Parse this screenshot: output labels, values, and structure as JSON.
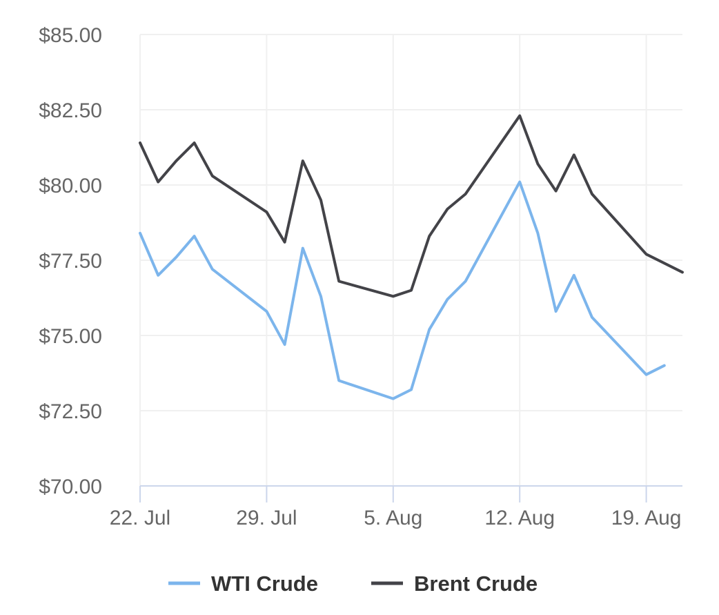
{
  "chart_data": {
    "type": "line",
    "title": "",
    "xlabel": "",
    "ylabel": "",
    "ylim": [
      70,
      85
    ],
    "xlim": [
      "2024-07-22",
      "2024-08-21"
    ],
    "y_ticks": [
      70,
      72.5,
      75,
      77.5,
      80,
      82.5,
      85
    ],
    "y_tick_labels": [
      "$70.00",
      "$72.50",
      "$75.00",
      "$77.50",
      "$80.00",
      "$82.50",
      "$85.00"
    ],
    "x_ticks": [
      "2024-07-22",
      "2024-07-29",
      "2024-08-05",
      "2024-08-12",
      "2024-08-19"
    ],
    "x_tick_labels": [
      "22. Jul",
      "29. Jul",
      "5. Aug",
      "12. Aug",
      "19. Aug"
    ],
    "grid": true,
    "legend_position": "bottom",
    "series": [
      {
        "name": "WTI Crude",
        "color": "#7cb5ec",
        "points": [
          {
            "x": "2024-07-22",
            "y": 78.4
          },
          {
            "x": "2024-07-23",
            "y": 77.0
          },
          {
            "x": "2024-07-24",
            "y": 77.6
          },
          {
            "x": "2024-07-25",
            "y": 78.3
          },
          {
            "x": "2024-07-26",
            "y": 77.2
          },
          {
            "x": "2024-07-29",
            "y": 75.8
          },
          {
            "x": "2024-07-30",
            "y": 74.7
          },
          {
            "x": "2024-07-31",
            "y": 77.9
          },
          {
            "x": "2024-08-01",
            "y": 76.3
          },
          {
            "x": "2024-08-02",
            "y": 73.5
          },
          {
            "x": "2024-08-05",
            "y": 72.9
          },
          {
            "x": "2024-08-06",
            "y": 73.2
          },
          {
            "x": "2024-08-07",
            "y": 75.2
          },
          {
            "x": "2024-08-08",
            "y": 76.2
          },
          {
            "x": "2024-08-09",
            "y": 76.8
          },
          {
            "x": "2024-08-12",
            "y": 80.1
          },
          {
            "x": "2024-08-13",
            "y": 78.4
          },
          {
            "x": "2024-08-14",
            "y": 75.8
          },
          {
            "x": "2024-08-15",
            "y": 77.0
          },
          {
            "x": "2024-08-16",
            "y": 75.6
          },
          {
            "x": "2024-08-19",
            "y": 73.7
          },
          {
            "x": "2024-08-20",
            "y": 74.0
          }
        ]
      },
      {
        "name": "Brent Crude",
        "color": "#434348",
        "points": [
          {
            "x": "2024-07-22",
            "y": 81.4
          },
          {
            "x": "2024-07-23",
            "y": 80.1
          },
          {
            "x": "2024-07-24",
            "y": 80.8
          },
          {
            "x": "2024-07-25",
            "y": 81.4
          },
          {
            "x": "2024-07-26",
            "y": 80.3
          },
          {
            "x": "2024-07-29",
            "y": 79.1
          },
          {
            "x": "2024-07-30",
            "y": 78.1
          },
          {
            "x": "2024-07-31",
            "y": 80.8
          },
          {
            "x": "2024-08-01",
            "y": 79.5
          },
          {
            "x": "2024-08-02",
            "y": 76.8
          },
          {
            "x": "2024-08-05",
            "y": 76.3
          },
          {
            "x": "2024-08-06",
            "y": 76.5
          },
          {
            "x": "2024-08-07",
            "y": 78.3
          },
          {
            "x": "2024-08-08",
            "y": 79.2
          },
          {
            "x": "2024-08-09",
            "y": 79.7
          },
          {
            "x": "2024-08-12",
            "y": 82.3
          },
          {
            "x": "2024-08-13",
            "y": 80.7
          },
          {
            "x": "2024-08-14",
            "y": 79.8
          },
          {
            "x": "2024-08-15",
            "y": 81.0
          },
          {
            "x": "2024-08-16",
            "y": 79.7
          },
          {
            "x": "2024-08-19",
            "y": 77.7
          },
          {
            "x": "2024-08-21",
            "y": 77.1
          }
        ]
      }
    ]
  }
}
